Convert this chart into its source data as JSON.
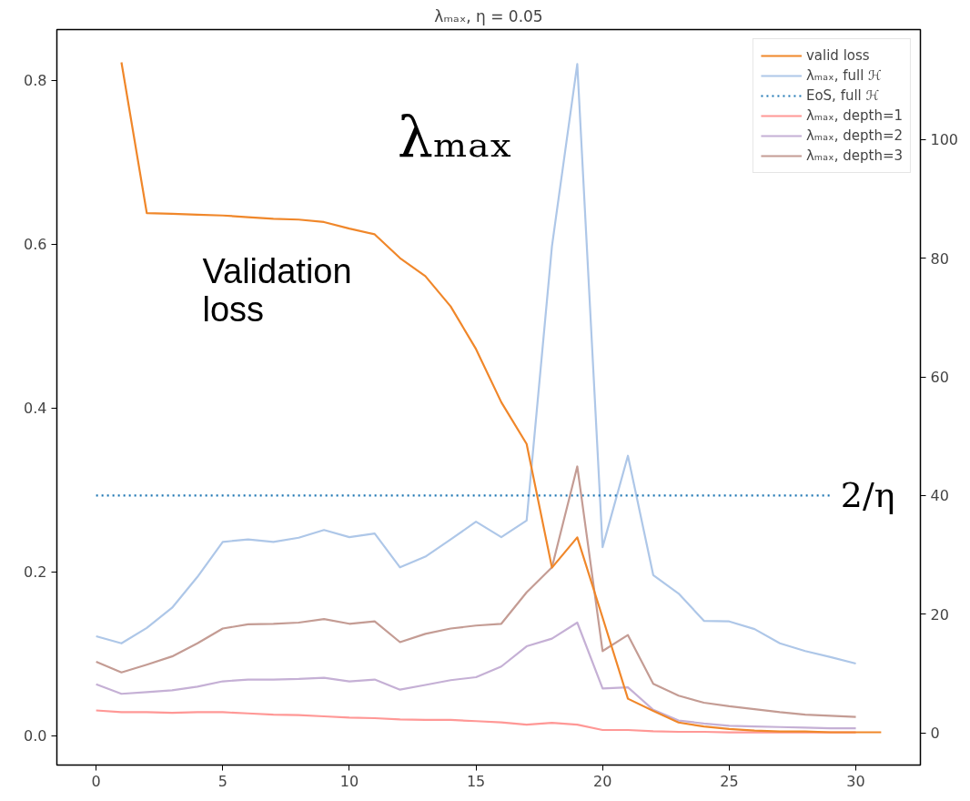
{
  "chart_data": {
    "type": "line",
    "title": "λₘₐₓ, η = 0.05",
    "xlim": [
      -1.55,
      32.55
    ],
    "xticks": [
      0,
      5,
      10,
      15,
      20,
      25,
      30
    ],
    "ylim": [
      -0.036,
      0.862
    ],
    "yticks": [
      {
        "value": 0,
        "label": "0.0"
      },
      0.2,
      0.4,
      0.6,
      0.8
    ],
    "y2lim": [
      -5.4,
      118.5
    ],
    "y2ticks": [
      0,
      20,
      40,
      60,
      80,
      100
    ],
    "grid": false,
    "legend": "top right",
    "series": [
      {
        "name": "valid loss",
        "color": "#f0872a",
        "x": [
          1,
          2,
          3,
          4,
          5,
          6,
          7,
          8,
          9,
          10,
          11,
          12,
          13,
          14,
          15,
          16,
          17,
          18,
          19,
          20,
          21,
          22,
          23,
          24,
          25,
          26,
          27,
          28,
          29,
          30,
          31
        ],
        "values": [
          0.822,
          0.638,
          0.637,
          0.636,
          0.635,
          0.633,
          0.631,
          0.63,
          0.627,
          0.619,
          0.612,
          0.583,
          0.561,
          0.524,
          0.472,
          0.407,
          0.356,
          0.205,
          0.242,
          0.144,
          0.045,
          0.03,
          0.016,
          0.011,
          0.008,
          0.006,
          0.005,
          0.005,
          0.004,
          0.004,
          0.004
        ]
      },
      {
        "name": "λₘₐₓ, full ℋ",
        "color": "#aec7e8",
        "axis": "y2",
        "x": [
          0,
          1,
          2,
          3,
          4,
          5,
          6,
          7,
          8,
          9,
          10,
          11,
          12,
          13,
          14,
          15,
          16,
          17,
          18,
          19,
          20,
          21,
          22,
          23,
          24,
          25,
          26,
          27,
          28,
          29,
          30
        ],
        "values": [
          16.3,
          15.1,
          17.7,
          21.1,
          26.3,
          32.2,
          32.6,
          32.2,
          32.9,
          34.2,
          33.0,
          33.6,
          27.9,
          29.7,
          32.6,
          35.6,
          33.0,
          35.8,
          82,
          112.7,
          31.3,
          46.7,
          26.6,
          23.5,
          18.9,
          18.8,
          17.5,
          15.1,
          13.8,
          12.8,
          11.7
        ]
      },
      {
        "name": "EoS, full ℋ",
        "color": "#1f77b4",
        "axis": "y2",
        "line_style": "dotted",
        "x": [
          0,
          29
        ],
        "values": [
          40,
          40
        ]
      },
      {
        "name": "λₘₐₓ, depth=1",
        "color": "#ff9896",
        "axis": "y2",
        "x": [
          0,
          1,
          2,
          3,
          4,
          5,
          6,
          7,
          8,
          9,
          10,
          11,
          12,
          13,
          14,
          15,
          16,
          17,
          18,
          19,
          20,
          21,
          22,
          23,
          24,
          25,
          26,
          27,
          28,
          29,
          30
        ],
        "values": [
          3.8,
          3.5,
          3.5,
          3.4,
          3.5,
          3.5,
          3.3,
          3.1,
          3.0,
          2.8,
          2.6,
          2.5,
          2.3,
          2.2,
          2.2,
          2.0,
          1.8,
          1.4,
          1.7,
          1.4,
          0.5,
          0.5,
          0.3,
          0.2,
          0.2,
          0.1,
          0.1,
          0.1,
          0.1,
          0.1,
          0.1
        ]
      },
      {
        "name": "λₘₐₓ, depth=2",
        "color": "#c5b0d5",
        "axis": "y2",
        "x": [
          0,
          1,
          2,
          3,
          4,
          5,
          6,
          7,
          8,
          9,
          10,
          11,
          12,
          13,
          14,
          15,
          16,
          17,
          18,
          19,
          20,
          21,
          22,
          23,
          24,
          25,
          26,
          27,
          28,
          29,
          30
        ],
        "values": [
          8.2,
          6.6,
          6.9,
          7.2,
          7.8,
          8.7,
          9.0,
          9.0,
          9.1,
          9.3,
          8.7,
          9.0,
          7.3,
          8.1,
          8.9,
          9.4,
          11.2,
          14.6,
          15.9,
          18.6,
          7.5,
          7.7,
          3.9,
          2.1,
          1.6,
          1.2,
          1.1,
          1.0,
          0.9,
          0.8,
          0.8
        ]
      },
      {
        "name": "λₘₐₓ, depth=3",
        "color": "#c49c94",
        "axis": "y2",
        "x": [
          0,
          1,
          2,
          3,
          4,
          5,
          6,
          7,
          8,
          9,
          10,
          11,
          12,
          13,
          14,
          15,
          16,
          17,
          18,
          19,
          20,
          21,
          22,
          23,
          24,
          25,
          26,
          27,
          28,
          29,
          30
        ],
        "values": [
          12.0,
          10.2,
          11.5,
          12.9,
          15.1,
          17.6,
          18.3,
          18.4,
          18.6,
          19.2,
          18.4,
          18.8,
          15.3,
          16.7,
          17.6,
          18.1,
          18.4,
          23.7,
          27.9,
          44.9,
          13.8,
          16.5,
          8.3,
          6.3,
          5.1,
          4.5,
          4.0,
          3.5,
          3.1,
          2.9,
          2.7
        ]
      }
    ],
    "annotations": [
      "Validation\nloss",
      "λₘₐₓ",
      "2/η"
    ]
  }
}
